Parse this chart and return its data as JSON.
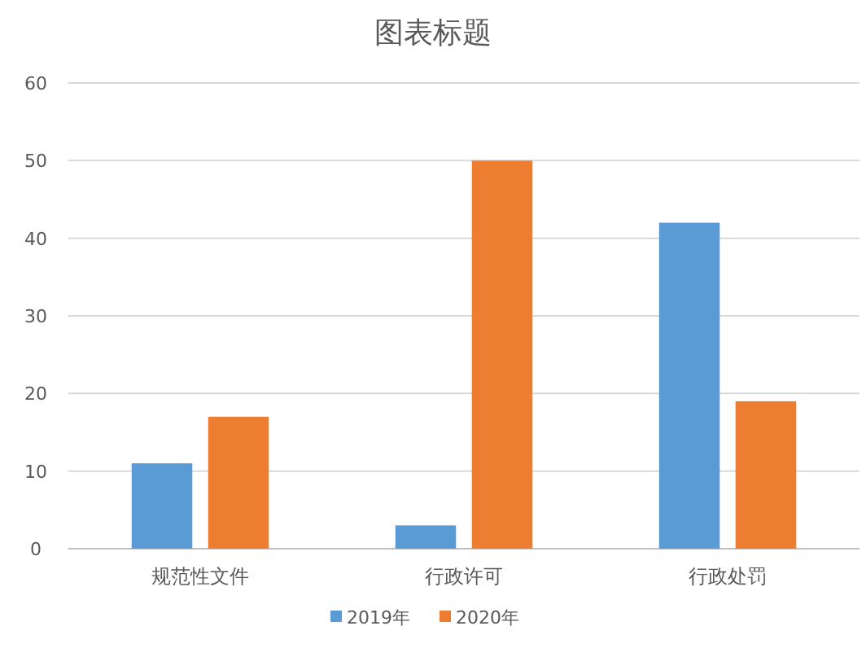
{
  "chart_data": {
    "type": "bar",
    "title": "图表标题",
    "categories": [
      "规范性文件",
      "行政许可",
      "行政处罚"
    ],
    "series": [
      {
        "name": "2019年",
        "color": "#5b9bd5",
        "values": [
          11,
          3,
          42
        ]
      },
      {
        "name": "2020年",
        "color": "#ed7d31",
        "values": [
          17,
          50,
          19
        ]
      }
    ],
    "ylim": [
      0,
      60
    ],
    "yticks": [
      0,
      10,
      20,
      30,
      40,
      50,
      60
    ],
    "grid": "y",
    "legend": "bottom"
  }
}
